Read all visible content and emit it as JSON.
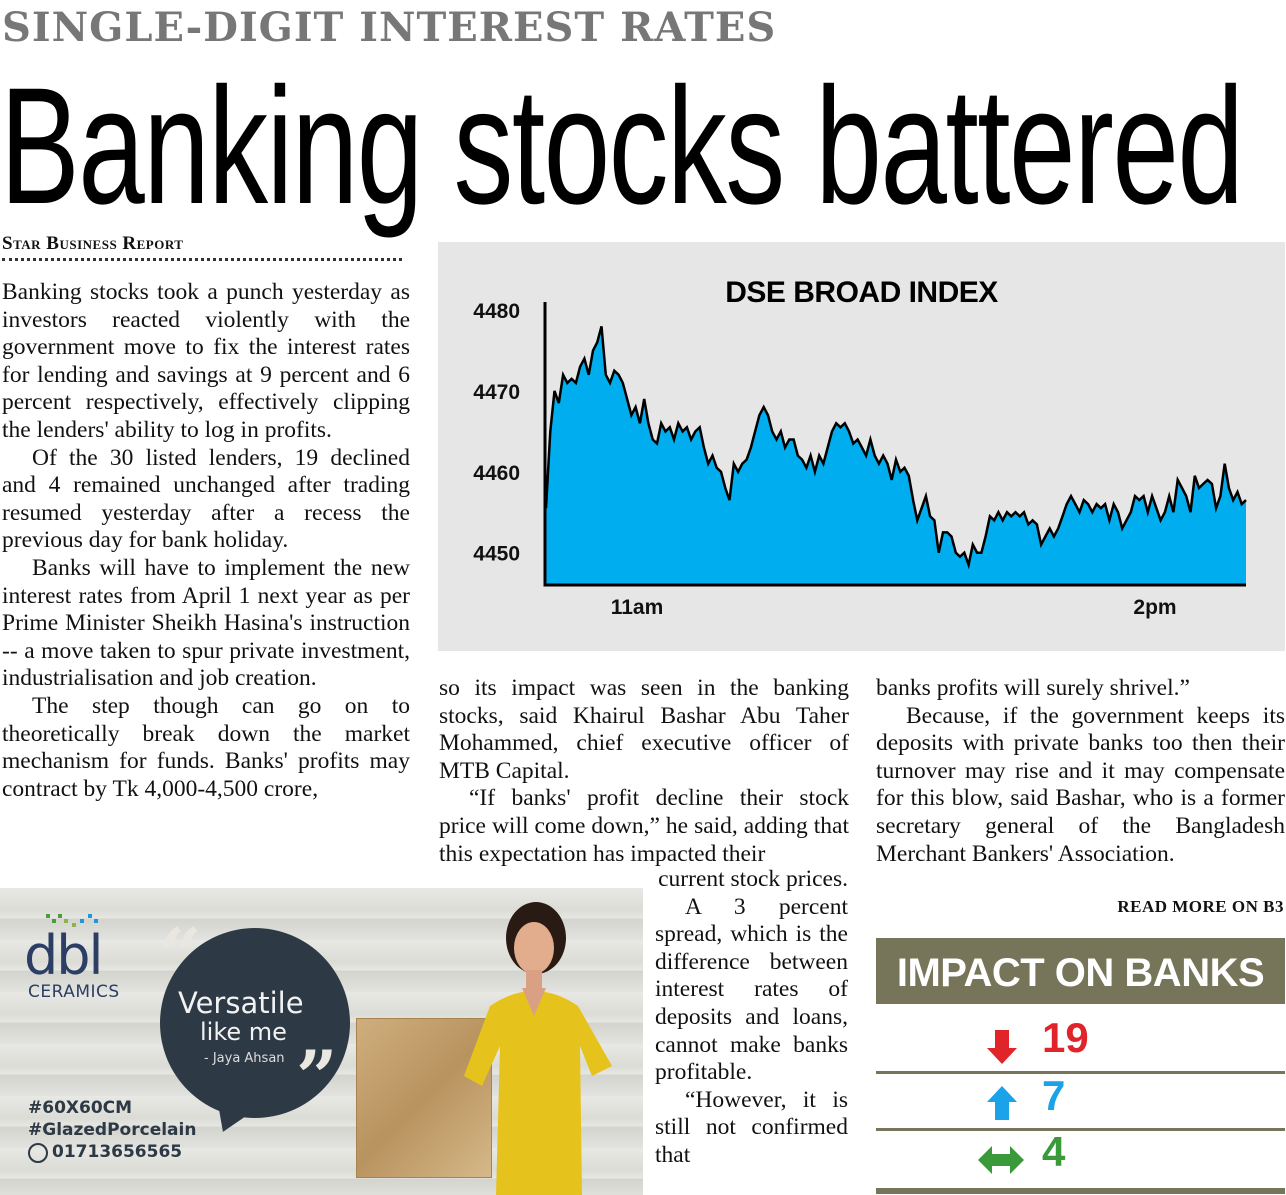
{
  "article": {
    "kicker": "SINGLE-DIGIT INTEREST RATES",
    "headline": "Banking stocks battered",
    "byline": "Star Business Report",
    "col1": [
      "Banking stocks took a punch yesterday as investors reacted violently with the government move to fix the interest rates for lending and savings at 9 percent and 6 percent respectively, effectively clipping the lenders' ability to log in profits.",
      "Of the 30 listed lenders, 19 declined and 4 remained unchanged after trading resumed yesterday after a recess the previous day for bank holiday.",
      "Banks will have to implement the new interest rates from April 1 next year as per Prime Minister Sheikh Hasina's instruction -- a move taken to spur private investment, industrialisation and job creation.",
      "The step though can go on to theoretically break down the market mechanism for funds. Banks' profits may contract by Tk 4,000-4,500 crore,"
    ],
    "col2": [
      "so its impact was seen in the banking stocks, said Khairul Bashar Abu Taher Mohammed, chief executive officer of MTB Capital.",
      "“If banks' profit decline their stock price will come down,” he said, adding that this expectation has impacted their"
    ],
    "col2b": [
      "current stock prices.",
      "A 3 percent spread, which is the difference between interest rates of deposits and loans, cannot make banks profitable.",
      "“However, it is still not confirmed that"
    ],
    "col3": [
      "banks profits will surely shrivel.”",
      "Because, if the government keeps its deposits with private banks too then their turnover may rise and it may compensate for this blow, said Bashar, who is a former secretary general of the Bangladesh Merchant Bankers' Association."
    ],
    "read_more": "READ MORE ON B3"
  },
  "chart_data": {
    "type": "area",
    "title": "DSE BROAD INDEX",
    "xlabel": "",
    "ylabel": "",
    "ylim": [
      4446,
      4481
    ],
    "yticks": [
      4450,
      4460,
      4470,
      4480
    ],
    "xtick_labels": [
      {
        "label": "11am",
        "x": 0.13
      },
      {
        "label": "2pm",
        "x": 0.87
      }
    ],
    "grid": false,
    "fill_color": "#00aeef",
    "line_color": "#000000",
    "background": "#e6e6e6",
    "series": [
      {
        "values": [
          4455.5,
          4465,
          4470,
          4468.5,
          4472,
          4471,
          4471.5,
          4471,
          4473,
          4474,
          4472,
          4475,
          4476,
          4478,
          4472,
          4471,
          4472.5,
          4472,
          4471,
          4469,
          4467,
          4468,
          4466,
          4469,
          4466,
          4464,
          4463.5,
          4466,
          4465,
          4465.5,
          4464,
          4466,
          4465,
          4465.5,
          4464,
          4465,
          4465.5,
          4463,
          4461,
          4462,
          4460.5,
          4460,
          4458,
          4456.5,
          4461,
          4460,
          4461,
          4461.5,
          4463,
          4465,
          4467,
          4468,
          4467,
          4465,
          4464,
          4465,
          4463,
          4464,
          4464,
          4462,
          4461.5,
          4460.5,
          4462,
          4460,
          4462,
          4461,
          4463,
          4465,
          4466,
          4465.5,
          4466,
          4465,
          4463.5,
          4464,
          4463,
          4462,
          4464,
          4462,
          4461,
          4462,
          4461,
          4459,
          4461.5,
          4460,
          4460.5,
          4459.5,
          4456.5,
          4454,
          4455.5,
          4457,
          4454.5,
          4454,
          4450,
          4452.5,
          4452.5,
          4452,
          4450,
          4449.5,
          4450,
          4448.5,
          4451,
          4450,
          4450,
          4452,
          4454.5,
          4454,
          4455,
          4454,
          4455,
          4454.5,
          4455,
          4454.5,
          4455,
          4453.5,
          4454,
          4453.5,
          4451,
          4452,
          4453,
          4452,
          4453,
          4454.5,
          4456,
          4457,
          4456,
          4455,
          4456.5,
          4456,
          4455,
          4456,
          4455.5,
          4456,
          4454,
          4456,
          4455,
          4453,
          4454,
          4455,
          4457,
          4456.5,
          4457,
          4455,
          4457,
          4455.5,
          4454,
          4455,
          4457,
          4455,
          4459,
          4458,
          4457,
          4455,
          4459.5,
          4458,
          4458.5,
          4459,
          4458.5,
          4455.5,
          4457,
          4461,
          4458,
          4456.5,
          4457.5,
          4456,
          4456.5
        ]
      }
    ]
  },
  "impact": {
    "title": "IMPACT ON BANKS",
    "rows": [
      {
        "direction": "down",
        "icon": "arrow-down-icon",
        "count": "19",
        "color": "#e0242a"
      },
      {
        "direction": "up",
        "icon": "arrow-up-icon",
        "count": "7",
        "color": "#1aa3e8"
      },
      {
        "direction": "unchanged",
        "icon": "arrow-left-right-icon",
        "count": "4",
        "color": "#3a9a3a"
      }
    ]
  },
  "ad": {
    "brand": "dbl",
    "brand_sub": "CERAMICS",
    "tagline_1": "Versatile",
    "tagline_2": "like me",
    "attribution": "- Jaya Ahsan",
    "tag_size": "#60X60CM",
    "tag_type": "#GlazedPorcelain",
    "phone": "01713656565"
  }
}
